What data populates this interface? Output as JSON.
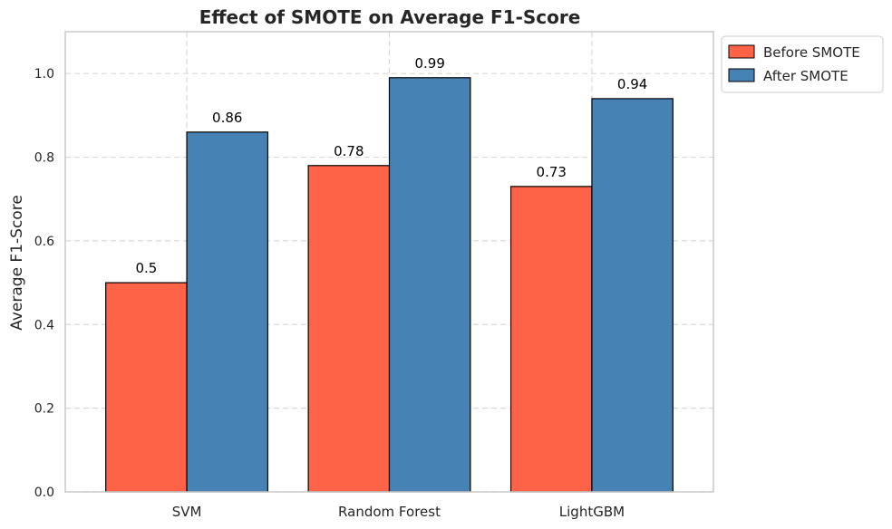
{
  "colors": {
    "before": "#ff6347",
    "after": "#4682b4",
    "grid": "#d9d9d9",
    "axis": "#c8c8c8",
    "text": "#262626"
  },
  "chart_data": {
    "type": "bar",
    "title": "Effect of SMOTE on Average F1-Score",
    "xlabel": "",
    "ylabel": "Average F1-Score",
    "categories": [
      "SVM",
      "Random Forest",
      "LightGBM"
    ],
    "series": [
      {
        "name": "Before SMOTE",
        "values": [
          0.5,
          0.78,
          0.73
        ],
        "labels": [
          "0.5",
          "0.78",
          "0.73"
        ]
      },
      {
        "name": "After SMOTE",
        "values": [
          0.86,
          0.99,
          0.94
        ],
        "labels": [
          "0.86",
          "0.99",
          "0.94"
        ]
      }
    ],
    "ylim": [
      0,
      1.1
    ],
    "yticks": [
      0.0,
      0.2,
      0.4,
      0.6,
      0.8,
      1.0
    ],
    "ytick_labels": [
      "0.0",
      "0.2",
      "0.4",
      "0.6",
      "0.8",
      "1.0"
    ],
    "grid": true,
    "legend": "outside-top-right"
  }
}
